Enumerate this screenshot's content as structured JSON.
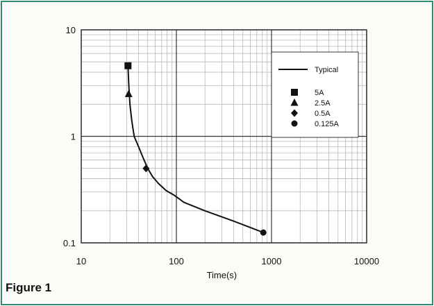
{
  "figure_label": "Figure 1",
  "chart_data": {
    "type": "line",
    "xlabel": "Time(s)",
    "ylabel": "",
    "xscale": "log",
    "yscale": "log",
    "xlim": [
      10,
      10000
    ],
    "ylim": [
      0.1,
      10
    ],
    "grid": true,
    "legend_placement": "top-right",
    "x_tick_labels": [
      "10",
      "100",
      "1000",
      "10000"
    ],
    "y_tick_labels": [
      "10",
      "1",
      "0.1"
    ],
    "line_series": {
      "name": "Typical",
      "x": [
        31,
        31.5,
        32.5,
        34,
        36,
        40,
        45,
        50,
        56,
        65,
        78,
        95,
        120,
        200,
        400,
        820
      ],
      "y": [
        4.6,
        3.2,
        2.0,
        1.4,
        1.0,
        0.8,
        0.62,
        0.5,
        0.42,
        0.36,
        0.31,
        0.28,
        0.24,
        0.2,
        0.16,
        0.125
      ]
    },
    "markers": [
      {
        "name": "5A",
        "shape": "square",
        "x": 31,
        "y": 4.6
      },
      {
        "name": "2.5A",
        "shape": "triangle",
        "x": 31.5,
        "y": 2.5
      },
      {
        "name": "0.5A",
        "shape": "diamond",
        "x": 48,
        "y": 0.5
      },
      {
        "name": "0.125A",
        "shape": "circle",
        "x": 820,
        "y": 0.125
      }
    ],
    "colors": {
      "line": "#111111",
      "grid_minor": "#b8b8b8",
      "grid_major": "#333333",
      "frame": "#2e8b72"
    }
  }
}
